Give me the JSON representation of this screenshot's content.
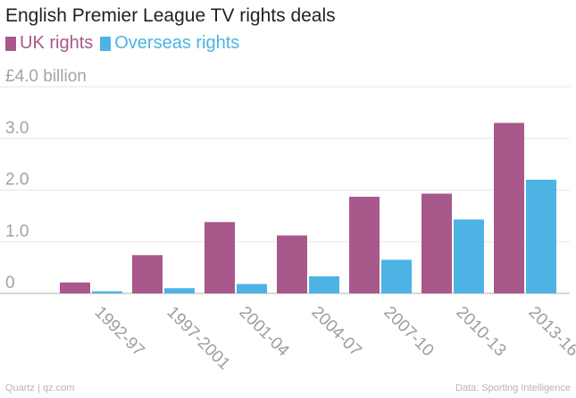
{
  "chart_data": {
    "type": "bar",
    "title": "English Premier League TV rights deals",
    "categories": [
      "1992-97",
      "1997-2001",
      "2001-04",
      "2004-07",
      "2007-10",
      "2010-13",
      "2013-16"
    ],
    "series": [
      {
        "name": "UK rights",
        "color": "#a8588a",
        "values": [
          0.21,
          0.74,
          1.38,
          1.12,
          1.87,
          1.93,
          3.3
        ]
      },
      {
        "name": "Overseas rights",
        "color": "#4db3e4",
        "values": [
          0.04,
          0.1,
          0.18,
          0.33,
          0.65,
          1.43,
          2.2
        ]
      }
    ],
    "yticks": [
      {
        "value": 0,
        "label": "0"
      },
      {
        "value": 1,
        "label": "1.0"
      },
      {
        "value": 2,
        "label": "2.0"
      },
      {
        "value": 3,
        "label": "3.0"
      },
      {
        "value": 4,
        "label": "£4.0 billion"
      }
    ],
    "ylim": [
      0,
      4
    ],
    "grid": true,
    "legend_position": "top-left"
  },
  "footer": {
    "source_left": "Quartz | qz.com",
    "source_right": "Data: Sporting Intelligence"
  }
}
